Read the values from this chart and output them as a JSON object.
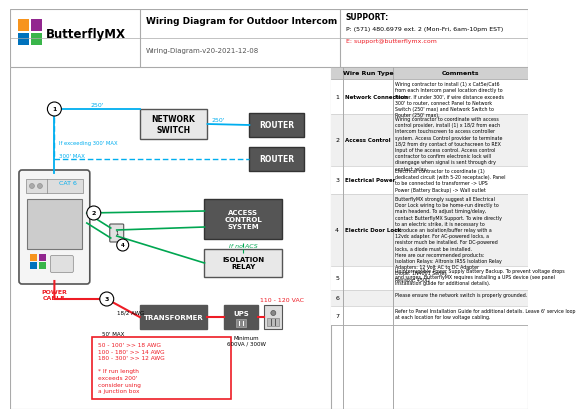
{
  "title": "Wiring Diagram for Outdoor Intercom",
  "subtitle": "Wiring-Diagram-v20-2021-12-08",
  "support_label": "SUPPORT:",
  "support_phone": "P: (571) 480.6979 ext. 2 (Mon-Fri, 6am-10pm EST)",
  "support_email": "E: support@butterflymx.com",
  "logo_text": "ButterflyMX",
  "bg_color": "#ffffff",
  "cyan_color": "#00aeef",
  "green_color": "#00a651",
  "red_color": "#ee1c25",
  "dark_red": "#be1e2d",
  "notes_box": "50 - 100' >> 18 AWG\n100 - 180' >> 14 AWG\n180 - 300' >> 12 AWG\n\n* If run length\nexceeds 200'\nconsider using\na junction box",
  "wire_runs": [
    {
      "num": "1",
      "type": "Network Connection",
      "comment": "Wiring contractor to install (1) x Cat5e/Cat6\nfrom each Intercom panel location directly to\nRouter. If under 300', if wire distance exceeds\n300' to router, connect Panel to Network\nSwitch (250' max) and Network Switch to\nRouter (250' max)."
    },
    {
      "num": "2",
      "type": "Access Control",
      "comment": "Wiring contractor to coordinate with access\ncontrol provider, install (1) x 18/2 from each\nIntercom touchscreen to access controller\nsystem. Access Control provider to terminate\n18/2 from dry contact of touchscreen to REX\nInput of the access control. Access control\ncontractor to confirm electronic lock will\ndisengage when signal is sent through dry\ncontact relay."
    },
    {
      "num": "3",
      "type": "Electrical Power",
      "comment": "Electrical contractor to coordinate (1)\ndedicated circuit (with 5-20 receptacle). Panel\nto be connected to transformer -> UPS\nPower (Battery Backup) -> Wall outlet"
    },
    {
      "num": "4",
      "type": "Electric Door Lock",
      "comment": "ButterflyMX strongly suggest all Electrical\nDoor Lock wiring to be home-run directly to\nmain headend. To adjust timing/delay,\ncontact ButterflyMX Support. To wire directly\nto an electric strike, it is necessary to\nintroduce an isolation/buffer relay with a\n12vdc adapter. For AC-powered locks, a\nresistor much be installed. For DC-powered\nlocks, a diode must be installed.\nHere are our recommended products:\nIsolation Relays: Altronix IR5S Isolation Relay\nAdapters: 12 Volt AC to DC Adapter\nDiode: 1N4001 Series\nResistor: 450Ω"
    },
    {
      "num": "5",
      "type": "",
      "comment": "Uninterruptible Power Supply Battery Backup. To prevent voltage drops\nand surges, ButterflyMX requires installing a UPS device (see panel\ninstallation guide for additional details)."
    },
    {
      "num": "6",
      "type": "",
      "comment": "Please ensure the network switch is properly grounded."
    },
    {
      "num": "7",
      "type": "",
      "comment": "Refer to Panel Installation Guide for additional details. Leave 6' service loop\nat each location for low voltage cabling."
    }
  ]
}
